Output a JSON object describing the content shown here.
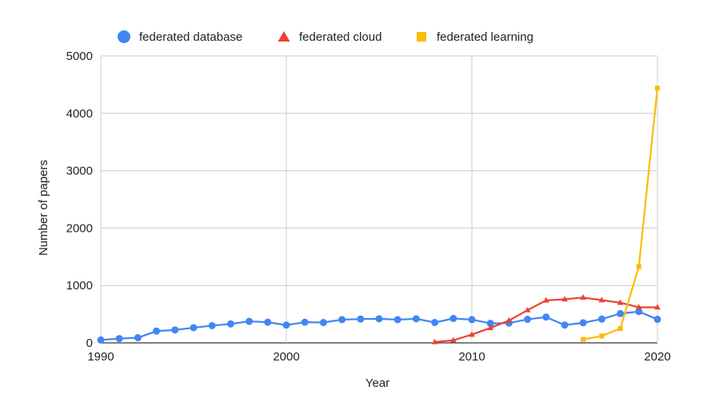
{
  "chart_data": {
    "type": "line",
    "title": "",
    "xlabel": "Year",
    "ylabel": "Number of papers",
    "xlim": [
      1990,
      2020
    ],
    "ylim": [
      0,
      5000
    ],
    "x_ticks": [
      1990,
      2000,
      2010,
      2020
    ],
    "y_ticks": [
      0,
      1000,
      2000,
      3000,
      4000,
      5000
    ],
    "grid": true,
    "legend_position": "top",
    "series": [
      {
        "name": "federated database",
        "color": "#4285F4",
        "marker": "circle",
        "x": [
          1990,
          1991,
          1992,
          1993,
          1994,
          1995,
          1996,
          1997,
          1998,
          1999,
          2000,
          2001,
          2002,
          2003,
          2004,
          2005,
          2006,
          2007,
          2008,
          2009,
          2010,
          2011,
          2012,
          2013,
          2014,
          2015,
          2016,
          2017,
          2018,
          2019,
          2020
        ],
        "y": [
          50,
          75,
          90,
          205,
          225,
          265,
          300,
          330,
          375,
          360,
          310,
          360,
          355,
          405,
          415,
          420,
          405,
          420,
          355,
          425,
          405,
          340,
          345,
          410,
          450,
          310,
          350,
          415,
          510,
          545,
          410
        ]
      },
      {
        "name": "federated cloud",
        "color": "#EA4335",
        "marker": "triangle",
        "x": [
          2008,
          2009,
          2010,
          2011,
          2012,
          2013,
          2014,
          2015,
          2016,
          2017,
          2018,
          2019,
          2020
        ],
        "y": [
          15,
          45,
          145,
          260,
          390,
          570,
          740,
          760,
          790,
          745,
          700,
          620,
          620
        ]
      },
      {
        "name": "federated learning",
        "color": "#FBBC04",
        "marker": "square",
        "x": [
          2016,
          2017,
          2018,
          2019,
          2020
        ],
        "y": [
          60,
          120,
          250,
          1330,
          4440
        ]
      }
    ]
  }
}
